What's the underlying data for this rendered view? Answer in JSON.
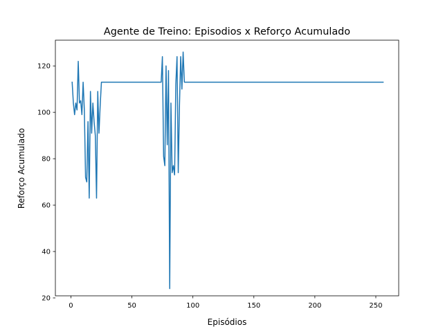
{
  "chart_data": {
    "type": "line",
    "title": "Agente de Treino: Episodios x Reforço Acumulado",
    "xlabel": "Episódios",
    "ylabel": "Reforço Acumulado",
    "xlim": [
      -12.75,
      268.75
    ],
    "ylim": [
      20.9,
      131.1
    ],
    "xticks": [
      0,
      50,
      100,
      150,
      200,
      250
    ],
    "xtick_labels": [
      "0",
      "50",
      "100",
      "150",
      "200",
      "250"
    ],
    "yticks": [
      20,
      40,
      60,
      80,
      100,
      120
    ],
    "ytick_labels": [
      "20",
      "40",
      "60",
      "80",
      "100",
      "120"
    ],
    "grid": false,
    "legend": false,
    "series": [
      {
        "color": "#1f77b4",
        "x": [
          1,
          2,
          3,
          4,
          5,
          6,
          7,
          8,
          9,
          10,
          11,
          12,
          13,
          14,
          15,
          16,
          17,
          18,
          19,
          20,
          21,
          22,
          23,
          24,
          25,
          26,
          27,
          28,
          29,
          30,
          40,
          50,
          60,
          70,
          74,
          75,
          76,
          77,
          78,
          79,
          80,
          81,
          82,
          83,
          84,
          85,
          86,
          87,
          88,
          89,
          90,
          91,
          92,
          93,
          94,
          95,
          100,
          150,
          200,
          256
        ],
        "y": [
          113,
          104,
          99,
          104,
          101,
          122,
          104,
          105,
          99,
          113,
          101,
          72,
          70,
          96,
          63,
          109,
          91,
          104,
          96,
          90,
          63,
          109,
          91,
          103,
          113,
          113,
          113,
          113,
          113,
          113,
          113,
          113,
          113,
          113,
          113,
          124,
          81,
          77,
          120,
          86,
          118,
          24,
          104,
          74,
          77,
          73,
          112,
          124,
          74,
          103,
          124,
          110,
          126,
          113,
          113,
          113,
          113,
          113,
          113,
          113
        ]
      }
    ]
  }
}
